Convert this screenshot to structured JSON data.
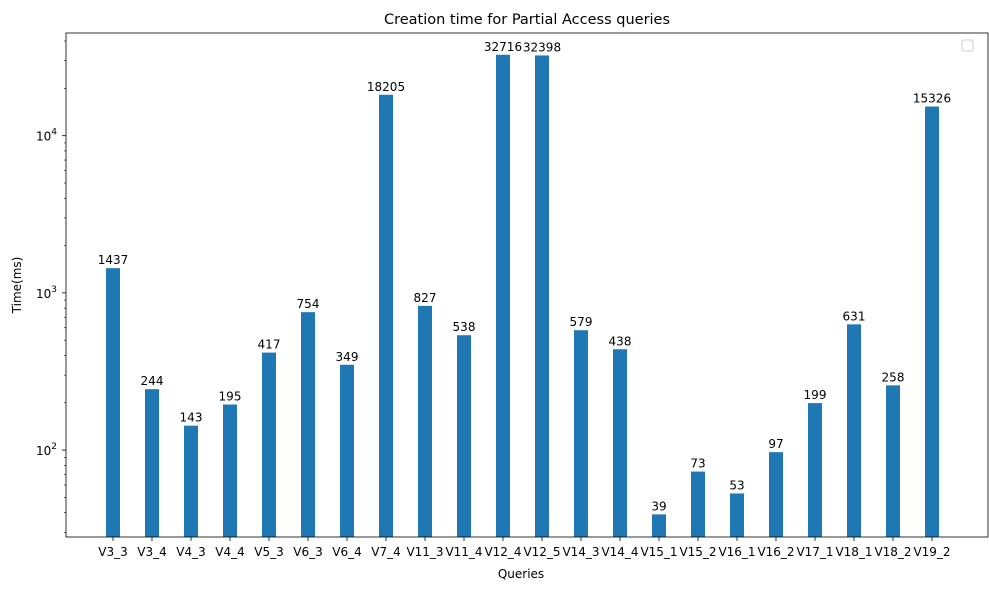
{
  "chart_data": {
    "type": "bar",
    "title": "Creation time for Partial Access queries",
    "xlabel": "Queries",
    "ylabel": "Time(ms)",
    "yscale": "log",
    "ylim": [
      28,
      45000
    ],
    "yticks": [
      {
        "value": 100,
        "base": "10",
        "exp": "2"
      },
      {
        "value": 1000,
        "base": "10",
        "exp": "3"
      },
      {
        "value": 10000,
        "base": "10",
        "exp": "4"
      }
    ],
    "categories": [
      "V3_3",
      "V3_4",
      "V4_3",
      "V4_4",
      "V5_3",
      "V6_3",
      "V6_4",
      "V7_4",
      "V11_3",
      "V11_4",
      "V12_4",
      "V12_5",
      "V14_3",
      "V14_4",
      "V15_1",
      "V15_2",
      "V16_1",
      "V16_2",
      "V17_1",
      "V18_1",
      "V18_2",
      "V19_2"
    ],
    "values": [
      1437,
      244,
      143,
      195,
      417,
      754,
      349,
      18205,
      827,
      538,
      32716,
      32398,
      579,
      438,
      39,
      73,
      53,
      97,
      199,
      631,
      258,
      15326
    ],
    "bar_color": "#1f77b4",
    "legend": {
      "entries": [],
      "placement": "upper right"
    },
    "grid": false
  }
}
